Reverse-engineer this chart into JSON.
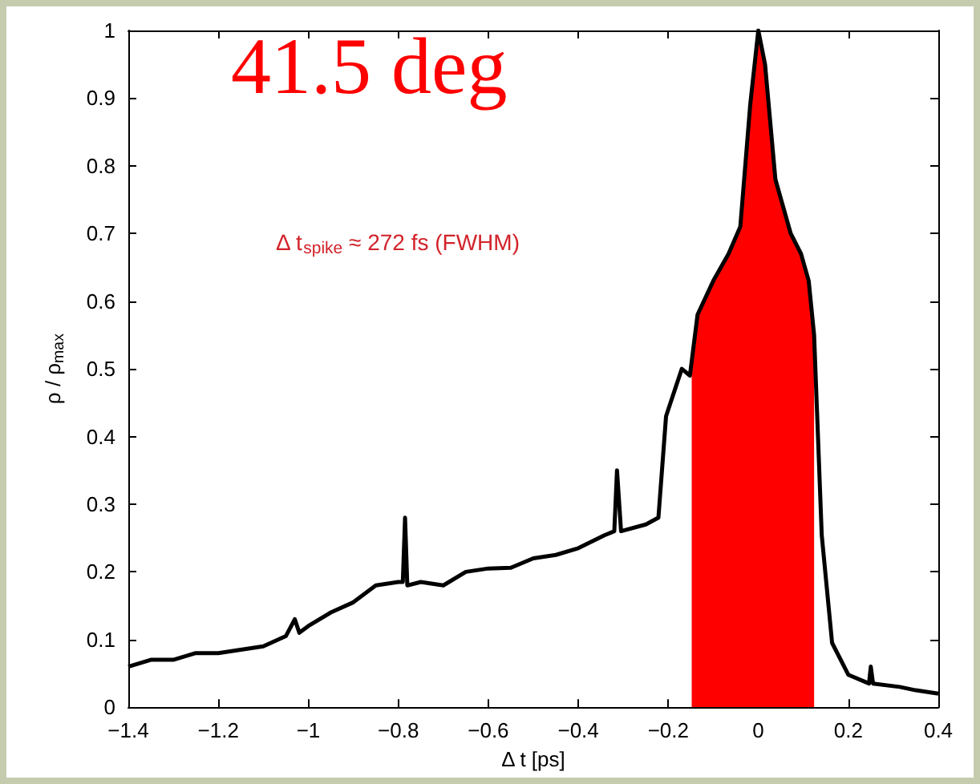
{
  "chart_data": {
    "type": "line",
    "xlabel": "Δ t [ps]",
    "ylabel": "ρ / ρ$_{max}$",
    "annotations": [
      "41.5 deg",
      "Δ t$_{spike}$ ≈ 272 fs (FWHM)"
    ],
    "series": [
      {
        "type": "area",
        "color": "#ff0000",
        "x": [
          -0.148,
          -0.135,
          -0.1,
          -0.066,
          -0.04,
          -0.018,
          0,
          0.015,
          0.038,
          0.072,
          0.095,
          0.112,
          0.124
        ],
        "values": [
          0.49,
          0.58,
          0.63,
          0.67,
          0.71,
          0.89,
          1.0,
          0.95,
          0.78,
          0.7,
          0.67,
          0.63,
          0.55
        ]
      },
      {
        "color": "#000000",
        "x": [
          -1.4,
          -1.35,
          -1.3,
          -1.25,
          -1.2,
          -1.15,
          -1.1,
          -1.05,
          -1.03,
          -1.02,
          -1.0,
          -0.95,
          -0.9,
          -0.85,
          -0.8,
          -0.79,
          -0.785,
          -0.78,
          -0.75,
          -0.7,
          -0.65,
          -0.6,
          -0.55,
          -0.5,
          -0.45,
          -0.4,
          -0.342,
          -0.32,
          -0.314,
          -0.305,
          -0.25,
          -0.222,
          -0.205,
          -0.17,
          -0.152,
          -0.135,
          -0.1,
          -0.066,
          -0.04,
          -0.018,
          0,
          0.015,
          0.038,
          0.072,
          0.095,
          0.112,
          0.124,
          0.141,
          0.164,
          0.2,
          0.246,
          0.25,
          0.255,
          0.314,
          0.35,
          0.4
        ],
        "values": [
          0.06,
          0.07,
          0.07,
          0.08,
          0.08,
          0.085,
          0.09,
          0.105,
          0.13,
          0.11,
          0.12,
          0.14,
          0.155,
          0.18,
          0.185,
          0.185,
          0.28,
          0.18,
          0.185,
          0.18,
          0.2,
          0.205,
          0.206,
          0.22,
          0.225,
          0.235,
          0.254,
          0.26,
          0.35,
          0.26,
          0.27,
          0.28,
          0.43,
          0.5,
          0.49,
          0.58,
          0.63,
          0.67,
          0.71,
          0.89,
          1.0,
          0.95,
          0.78,
          0.7,
          0.67,
          0.63,
          0.55,
          0.254,
          0.095,
          0.048,
          0.035,
          0.06,
          0.035,
          0.03,
          0.025,
          0.02
        ]
      }
    ],
    "xlim": [
      -1.4,
      0.4
    ],
    "xticks": [
      -1.4,
      -1.2,
      -1,
      -0.8,
      -0.6,
      -0.4,
      -0.2,
      0,
      0.2,
      0.4
    ],
    "ylim": [
      0,
      1
    ],
    "yticks": [
      0,
      0.1,
      0.2,
      0.3,
      0.4,
      0.5,
      0.6,
      0.7,
      0.8,
      0.9,
      1
    ],
    "marker": "none",
    "line_style": "solid"
  }
}
